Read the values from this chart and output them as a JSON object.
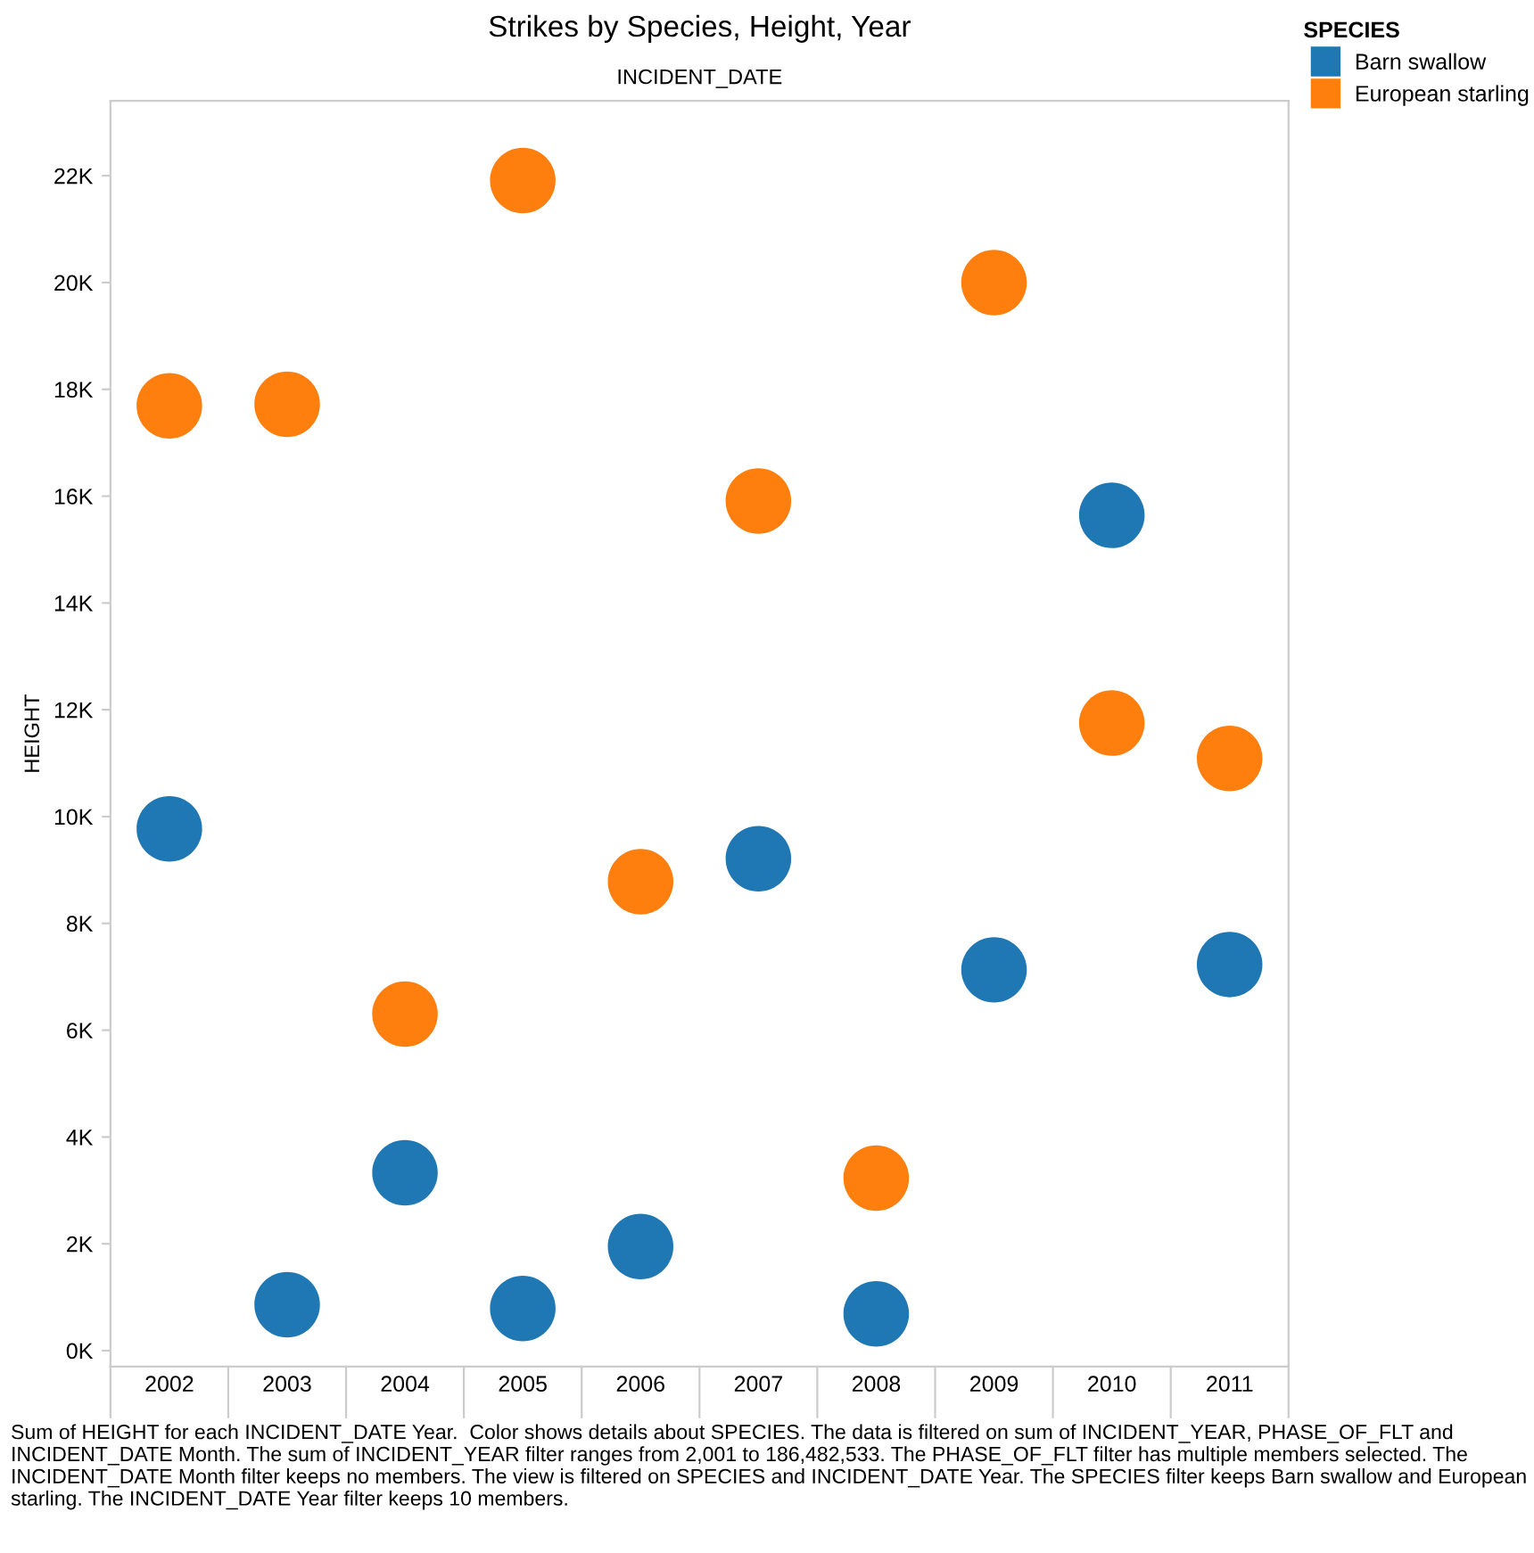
{
  "chart_data": {
    "type": "scatter",
    "title": "Strikes by Species, Height, Year",
    "xlabel": "INCIDENT_DATE",
    "ylabel": "HEIGHT",
    "legend_title": "SPECIES",
    "categories": [
      "2002",
      "2003",
      "2004",
      "2005",
      "2006",
      "2007",
      "2008",
      "2009",
      "2010",
      "2011"
    ],
    "series": [
      {
        "name": "Barn swallow",
        "color": "#1f77b4",
        "values": [
          9.77,
          0.86,
          3.33,
          0.79,
          1.95,
          9.21,
          0.69,
          7.13,
          15.64,
          7.23
        ]
      },
      {
        "name": "European starling",
        "color": "#ff7f0e",
        "values": [
          17.69,
          17.72,
          6.3,
          21.91,
          8.78,
          15.91,
          3.23,
          20.0,
          11.75,
          11.09
        ]
      }
    ],
    "ylim": [
      -0.3,
      23.4
    ],
    "yticks": [
      {
        "value": 0,
        "label": "0K"
      },
      {
        "value": 2,
        "label": "2K"
      },
      {
        "value": 4,
        "label": "4K"
      },
      {
        "value": 6,
        "label": "6K"
      },
      {
        "value": 8,
        "label": "8K"
      },
      {
        "value": 10,
        "label": "10K"
      },
      {
        "value": 12,
        "label": "12K"
      },
      {
        "value": 14,
        "label": "14K"
      },
      {
        "value": 16,
        "label": "16K"
      },
      {
        "value": 18,
        "label": "18K"
      },
      {
        "value": 20,
        "label": "20K"
      },
      {
        "value": 22,
        "label": "22K"
      }
    ],
    "marker": "circle",
    "grid": false,
    "legend": "top right",
    "annotations": [
      "Sum of HEIGHT for each INCIDENT_DATE Year.  Color shows details about SPECIES. The data is filtered on sum of INCIDENT_YEAR, PHASE_OF_FLT and INCIDENT_DATE Month. The sum of INCIDENT_YEAR filter ranges from 2,001 to 186,482,533. The PHASE_OF_FLT filter has multiple members selected. The INCIDENT_DATE Month filter keeps no members. The view is filtered on SPECIES and INCIDENT_DATE Year. The SPECIES filter keeps Barn swallow and European starling. The INCIDENT_DATE Year filter keeps 10 members."
    ]
  }
}
